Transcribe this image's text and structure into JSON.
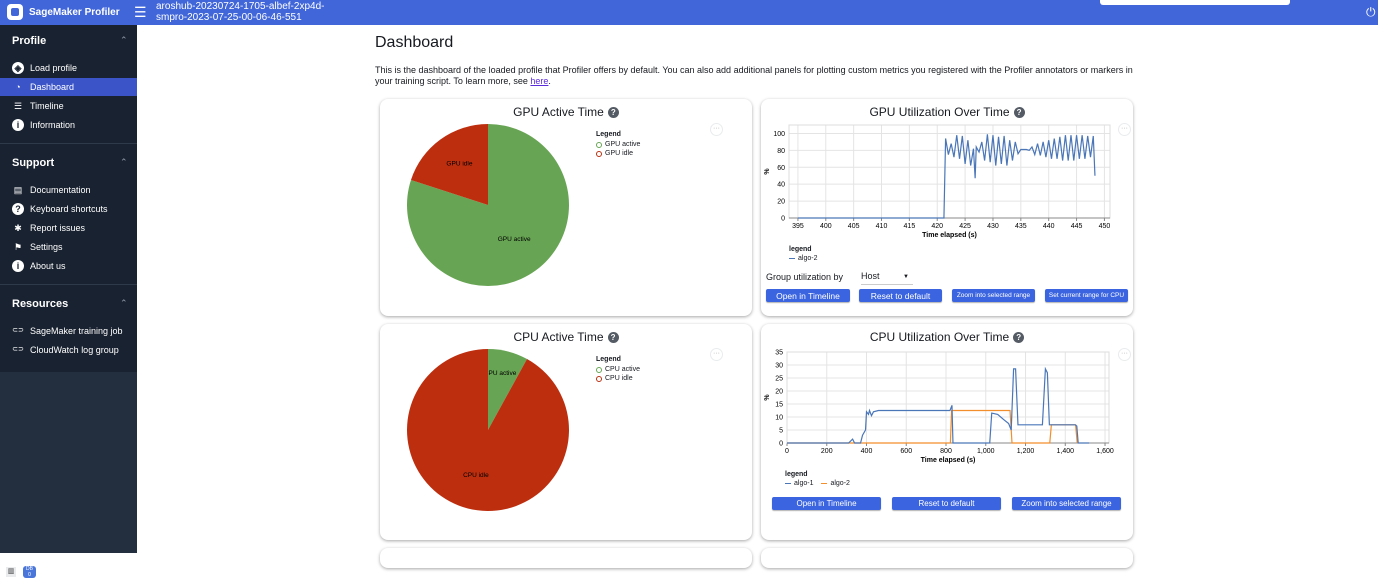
{
  "header": {
    "app_name": "SageMaker Profiler",
    "profile_title_line1": "aroshub-20230724-1705-albef-2xp4d-",
    "profile_title_line2": "smpro-2023-07-25-00-06-46-551",
    "menu_icon": "hamburger-icon",
    "power_icon": "power-icon"
  },
  "sidebar": {
    "sections": [
      {
        "title": "Profile",
        "items": [
          {
            "label": "Load profile",
            "icon": "compass-icon"
          },
          {
            "label": "Dashboard",
            "icon": "gauge-icon",
            "active": true
          },
          {
            "label": "Timeline",
            "icon": "timeline-icon"
          },
          {
            "label": "Information",
            "icon": "info-icon"
          }
        ]
      },
      {
        "title": "Support",
        "items": [
          {
            "label": "Documentation",
            "icon": "document-icon"
          },
          {
            "label": "Keyboard shortcuts",
            "icon": "question-icon"
          },
          {
            "label": "Report issues",
            "icon": "bug-icon"
          },
          {
            "label": "Settings",
            "icon": "flag-icon"
          },
          {
            "label": "About us",
            "icon": "info-icon"
          }
        ]
      },
      {
        "title": "Resources",
        "items": [
          {
            "label": "SageMaker training job",
            "icon": "link-icon"
          },
          {
            "label": "CloudWatch log group",
            "icon": "link-icon"
          }
        ]
      }
    ],
    "bottom_badge": "DB\n0"
  },
  "main": {
    "title": "Dashboard",
    "intro": "This is the dashboard of the loaded profile that Profiler offers by default. You can also add additional panels for plotting custom metrics you registered with the Profiler annotators or markers in your training script. To learn more, see ",
    "intro_link": "here",
    "intro_end": "."
  },
  "colors": {
    "header": "#4066d9",
    "active": "#3b55c8",
    "green": "#67a453",
    "red": "#bd2e0f",
    "algo1": "#4a76b8",
    "algo2": "#f28e2b",
    "button": "#3b64e0"
  },
  "chart_data": [
    {
      "type": "pie",
      "title": "GPU Active Time",
      "legend_title": "Legend",
      "labels": [
        "GPU active",
        "GPU idle"
      ],
      "values": [
        80,
        20
      ],
      "colors": [
        "#67a453",
        "#bd2e0f"
      ],
      "legend": "right"
    },
    {
      "type": "line",
      "title": "GPU Utilization Over Time",
      "xlabel": "Time elapsed (s)",
      "ylabel": "%",
      "xlim": [
        393.4,
        451
      ],
      "ylim": [
        0,
        110
      ],
      "xticks": [
        395,
        400,
        405,
        410,
        415,
        420,
        425,
        430,
        435,
        440,
        445,
        450
      ],
      "yticks": [
        0,
        20,
        40,
        60,
        80,
        100
      ],
      "grid": true,
      "legend_title": "legend",
      "legend": "bottom-left",
      "series": [
        {
          "name": "algo-2",
          "color": "#4a76b8",
          "points": [
            [
              395,
              0
            ],
            [
              421.2,
              0
            ],
            [
              421.5,
              94
            ],
            [
              422,
              75
            ],
            [
              422.5,
              88
            ],
            [
              423,
              72
            ],
            [
              423.5,
              98
            ],
            [
              424,
              70
            ],
            [
              424.5,
              97
            ],
            [
              425,
              64
            ],
            [
              425.5,
              92
            ],
            [
              426,
              62
            ],
            [
              426.5,
              82
            ],
            [
              426.8,
              47
            ],
            [
              427,
              84
            ],
            [
              427.5,
              78
            ],
            [
              428,
              90
            ],
            [
              428.5,
              68
            ],
            [
              429,
              99
            ],
            [
              429.5,
              66
            ],
            [
              430,
              98
            ],
            [
              430.5,
              62
            ],
            [
              431,
              96
            ],
            [
              431.5,
              64
            ],
            [
              432,
              97
            ],
            [
              432.5,
              62
            ],
            [
              433,
              92
            ],
            [
              433.5,
              68
            ],
            [
              434,
              90
            ],
            [
              434.5,
              76
            ],
            [
              435,
              81
            ],
            [
              436,
              81
            ],
            [
              436.5,
              80
            ],
            [
              437,
              84
            ],
            [
              437.5,
              75
            ],
            [
              438,
              88
            ],
            [
              438.5,
              74
            ],
            [
              439,
              90
            ],
            [
              439.5,
              72
            ],
            [
              440,
              92
            ],
            [
              440.5,
              70
            ],
            [
              441,
              94
            ],
            [
              441.5,
              70
            ],
            [
              442,
              96
            ],
            [
              442.5,
              68
            ],
            [
              443,
              98
            ],
            [
              443.5,
              68
            ],
            [
              444,
              98
            ],
            [
              444.5,
              68
            ],
            [
              445,
              98
            ],
            [
              445.5,
              70
            ],
            [
              446,
              98
            ],
            [
              446.5,
              70
            ],
            [
              447,
              97
            ],
            [
              447.5,
              72
            ],
            [
              448,
              97
            ],
            [
              448.3,
              50
            ]
          ]
        }
      ],
      "controls": {
        "group_label": "Group utilization by",
        "group_value": "Host",
        "buttons": [
          "Open in Timeline",
          "Reset to default",
          "Zoom into selected range",
          "Set current range for CPU"
        ]
      }
    },
    {
      "type": "pie",
      "title": "CPU Active Time",
      "legend_title": "Legend",
      "labels": [
        "CPU active",
        "CPU idle"
      ],
      "values": [
        8,
        92
      ],
      "colors": [
        "#67a453",
        "#bd2e0f"
      ],
      "legend": "right"
    },
    {
      "type": "line",
      "title": "CPU Utilization Over Time",
      "xlabel": "Time elapsed (s)",
      "ylabel": "%",
      "xlim": [
        0,
        1620
      ],
      "ylim": [
        0,
        35
      ],
      "xticks": [
        0,
        200,
        400,
        600,
        800,
        1000,
        1200,
        1400,
        1600
      ],
      "xtick_labels": [
        "0",
        "200",
        "400",
        "600",
        "800",
        "1,000",
        "1,200",
        "1,400",
        "1,600"
      ],
      "yticks": [
        0,
        5,
        10,
        15,
        20,
        25,
        30,
        35
      ],
      "grid": true,
      "legend_title": "legend",
      "legend": "bottom-left",
      "series": [
        {
          "name": "algo-1",
          "color": "#4a76b8",
          "points": [
            [
              0,
              0
            ],
            [
              310,
              0
            ],
            [
              330,
              1.5
            ],
            [
              340,
              0
            ],
            [
              370,
              0
            ],
            [
              380,
              3
            ],
            [
              395,
              5
            ],
            [
              400,
              12
            ],
            [
              410,
              11
            ],
            [
              415,
              12.5
            ],
            [
              425,
              10.5
            ],
            [
              435,
              12
            ],
            [
              460,
              12.5
            ],
            [
              820,
              12.5
            ],
            [
              830,
              14.5
            ],
            [
              835,
              0
            ],
            [
              1020,
              0
            ],
            [
              1030,
              11.5
            ],
            [
              1060,
              11
            ],
            [
              1090,
              9
            ],
            [
              1115,
              7.5
            ],
            [
              1128,
              5
            ],
            [
              1140,
              28.5
            ],
            [
              1150,
              28.5
            ],
            [
              1162,
              7
            ],
            [
              1285,
              7
            ],
            [
              1300,
              28.5
            ],
            [
              1310,
              27
            ],
            [
              1320,
              7
            ],
            [
              1450,
              7
            ],
            [
              1458,
              6.5
            ],
            [
              1465,
              0
            ],
            [
              1520,
              0
            ]
          ]
        },
        {
          "name": "algo-2",
          "color": "#f28e2b",
          "points": [
            [
              0,
              0
            ],
            [
              822,
              0
            ],
            [
              828,
              12.5
            ],
            [
              1122,
              12.5
            ],
            [
              1132,
              0
            ],
            [
              1322,
              0
            ],
            [
              1330,
              7
            ],
            [
              1452,
              7
            ],
            [
              1460,
              0
            ]
          ]
        }
      ],
      "controls": {
        "buttons": [
          "Open in Timeline",
          "Reset to default",
          "Zoom into selected range"
        ]
      }
    }
  ]
}
